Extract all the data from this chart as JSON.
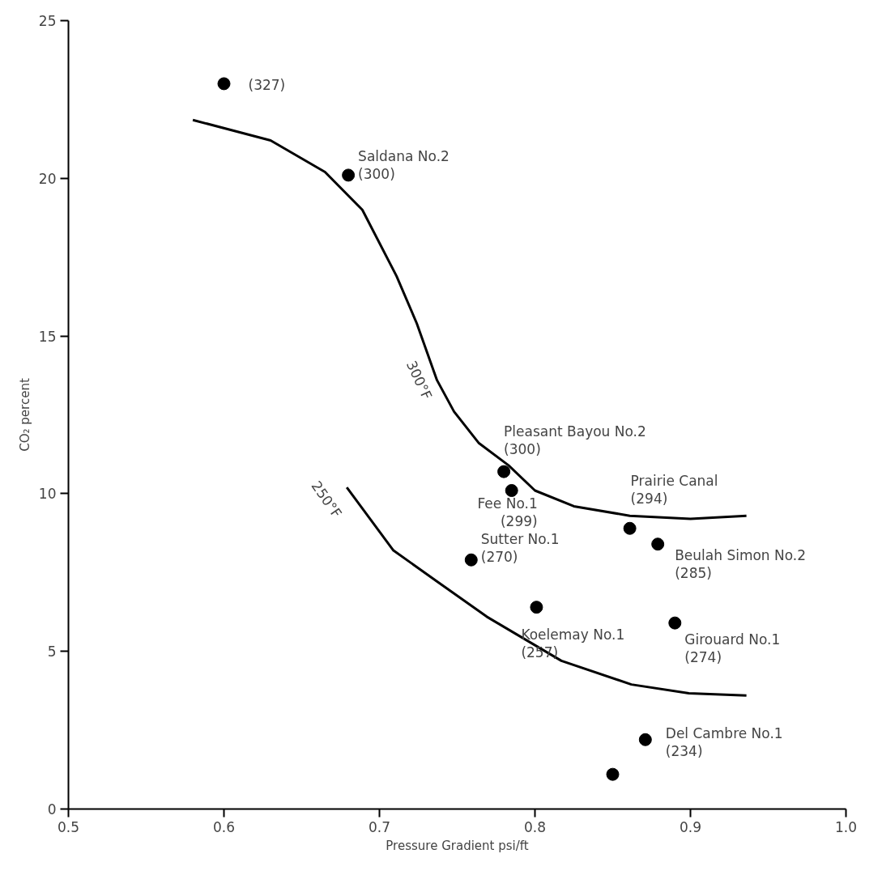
{
  "chart_data": {
    "type": "scatter",
    "xlabel": "Pressure Gradient psi/ft",
    "ylabel": "CO₂ percent",
    "xlim": [
      0.5,
      1.0
    ],
    "ylim": [
      0,
      25
    ],
    "xticks": [
      0.5,
      0.6,
      0.7,
      0.8,
      0.9,
      {
        "value": 1.0,
        "label": "1.0"
      }
    ],
    "yticks": [
      0,
      5,
      10,
      15,
      20,
      25
    ],
    "grid": false,
    "series": [
      {
        "color": "#000000",
        "marker": "circle",
        "x": [
          0.6,
          0.68,
          0.78,
          0.785,
          0.861,
          0.879,
          0.759,
          0.801,
          0.89,
          0.871,
          0.85
        ],
        "values": [
          23,
          20.1,
          10.7,
          10.1,
          8.9,
          8.4,
          7.9,
          6.4,
          5.9,
          2.2,
          1.1
        ]
      },
      {
        "type": "line",
        "marker": "none",
        "color": "#000000",
        "x": [
          0.58,
          0.63,
          0.665,
          0.689,
          0.711,
          0.724,
          0.737,
          0.748,
          0.764,
          0.783,
          0.8,
          0.825,
          0.861,
          0.9,
          0.936
        ],
        "values": [
          21.85,
          21.2,
          20.2,
          19.0,
          16.9,
          15.4,
          13.6,
          12.6,
          11.6,
          10.9,
          10.1,
          9.6,
          9.3,
          9.2,
          9.3
        ]
      },
      {
        "type": "line",
        "marker": "none",
        "color": "#000000",
        "x": [
          0.679,
          0.709,
          0.7375,
          0.769,
          0.817,
          0.862,
          0.899,
          0.936
        ],
        "values": [
          10.2,
          8.2,
          7.2,
          6.1,
          4.7,
          3.95,
          3.67,
          3.6
        ]
      }
    ],
    "annotations": [
      {
        "text": "(327)",
        "x": 0.6,
        "y": 23
      },
      {
        "text": "Saldana No.2\n(300)",
        "x": 0.68,
        "y": 20.1
      },
      {
        "text": "Pleasant Bayou No.2\n(300)",
        "x": 0.78,
        "y": 10.7
      },
      {
        "text": "Fee No.1\n(299)",
        "x": 0.785,
        "y": 10.1
      },
      {
        "text": "Prairie Canal\n(294)",
        "x": 0.861,
        "y": 8.9
      },
      {
        "text": "Beulah Simon No.2\n(285)",
        "x": 0.879,
        "y": 8.4
      },
      {
        "text": "Sutter No.1\n(270)",
        "x": 0.759,
        "y": 7.9
      },
      {
        "text": "Koelemay No.1\n(257)",
        "x": 0.801,
        "y": 6.4
      },
      {
        "text": "Girouard No.1\n(274)",
        "x": 0.89,
        "y": 5.9
      },
      {
        "text": "Del Cambre No.1\n(234)",
        "x": 0.871,
        "y": 2.2
      },
      {
        "text": "300°F",
        "x": 0.737,
        "y": 13.6
      },
      {
        "text": "250°F",
        "x": 0.679,
        "y": 10.2
      }
    ]
  }
}
